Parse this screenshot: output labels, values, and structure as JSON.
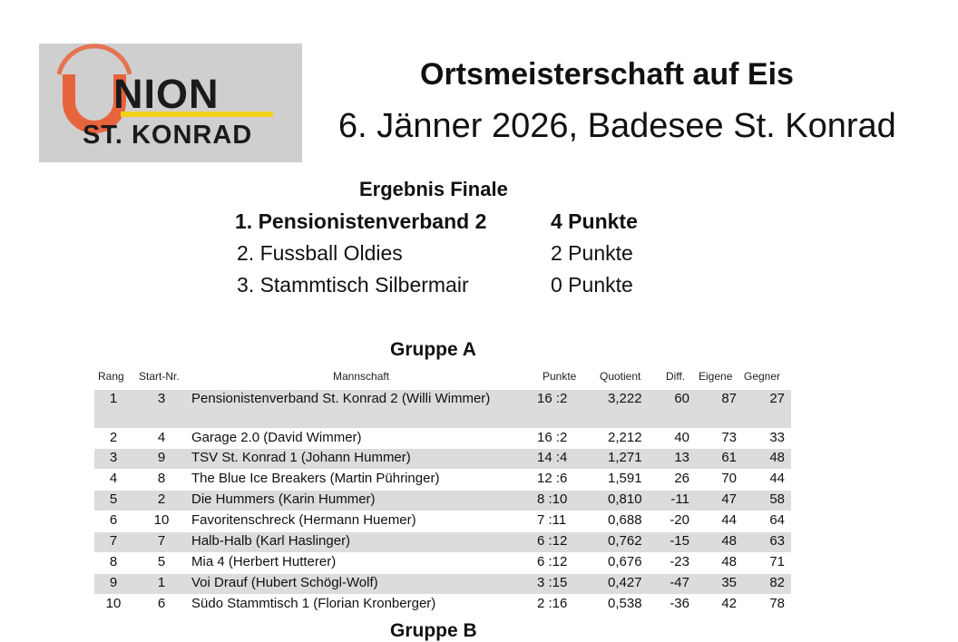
{
  "logo": {
    "word": "NION",
    "place": "ST. KONRAD",
    "ring_color": "#e8643c",
    "accent_color": "#f1d21b"
  },
  "header": {
    "title": "Ortsmeisterschaft auf Eis",
    "subtitle": "6. Jänner 2026, Badesee St. Konrad"
  },
  "final": {
    "heading": "Ergebnis Finale",
    "rows": [
      {
        "team": "1. Pensionistenverband 2",
        "points": "4 Punkte"
      },
      {
        "team": "2. Fussball Oldies",
        "points": "2 Punkte"
      },
      {
        "team": "3. Stammtisch Silbermair",
        "points": "0 Punkte"
      }
    ]
  },
  "group_a": {
    "heading": "Gruppe A",
    "columns": [
      "Rang",
      "Start-Nr.",
      "Mannschaft",
      "Punkte",
      "Quotient",
      "Diff.",
      "Eigene",
      "Gegner"
    ],
    "rows": [
      {
        "rang": "1",
        "start": "3",
        "team": "Pensionistenverband St. Konrad 2 (Willi Wimmer)",
        "punkte": "16 :2",
        "quotient": "3,222",
        "diff": "60",
        "eigene": "87",
        "gegner": "27"
      },
      {
        "rang": "2",
        "start": "4",
        "team": "Garage 2.0 (David Wimmer)",
        "punkte": "16 :2",
        "quotient": "2,212",
        "diff": "40",
        "eigene": "73",
        "gegner": "33"
      },
      {
        "rang": "3",
        "start": "9",
        "team": "TSV St. Konrad 1 (Johann Hummer)",
        "punkte": "14 :4",
        "quotient": "1,271",
        "diff": "13",
        "eigene": "61",
        "gegner": "48"
      },
      {
        "rang": "4",
        "start": "8",
        "team": "The Blue Ice Breakers (Martin Pühringer)",
        "punkte": "12 :6",
        "quotient": "1,591",
        "diff": "26",
        "eigene": "70",
        "gegner": "44"
      },
      {
        "rang": "5",
        "start": "2",
        "team": "Die Hummers (Karin Hummer)",
        "punkte": "8 :10",
        "quotient": "0,810",
        "diff": "-11",
        "eigene": "47",
        "gegner": "58"
      },
      {
        "rang": "6",
        "start": "10",
        "team": "Favoritenschreck (Hermann Huemer)",
        "punkte": "7 :11",
        "quotient": "0,688",
        "diff": "-20",
        "eigene": "44",
        "gegner": "64"
      },
      {
        "rang": "7",
        "start": "7",
        "team": "Halb-Halb (Karl Haslinger)",
        "punkte": "6 :12",
        "quotient": "0,762",
        "diff": "-15",
        "eigene": "48",
        "gegner": "63"
      },
      {
        "rang": "8",
        "start": "5",
        "team": "Mia 4 (Herbert Hutterer)",
        "punkte": "6 :12",
        "quotient": "0,676",
        "diff": "-23",
        "eigene": "48",
        "gegner": "71"
      },
      {
        "rang": "9",
        "start": "1",
        "team": "Voi Drauf (Hubert Schögl-Wolf)",
        "punkte": "3 :15",
        "quotient": "0,427",
        "diff": "-47",
        "eigene": "35",
        "gegner": "82"
      },
      {
        "rang": "10",
        "start": "6",
        "team": "Südo Stammtisch 1 (Florian Kronberger)",
        "punkte": "2 :16",
        "quotient": "0,538",
        "diff": "-36",
        "eigene": "42",
        "gegner": "78"
      }
    ]
  },
  "group_b": {
    "heading": "Gruppe B"
  }
}
